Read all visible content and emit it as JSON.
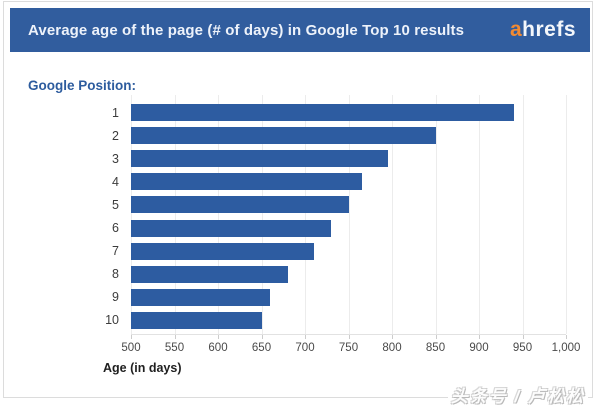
{
  "header": {
    "title": "Average age of the page (# of days) in Google Top 10 results",
    "logo_a": "a",
    "logo_rest": "hrefs"
  },
  "chart_data": {
    "type": "bar",
    "orientation": "horizontal",
    "title": "Average age of the page (# of days) in Google Top 10 results",
    "categories_title": "Google Position:",
    "categories": [
      "1",
      "2",
      "3",
      "4",
      "5",
      "6",
      "7",
      "8",
      "9",
      "10"
    ],
    "values": [
      940,
      850,
      795,
      765,
      750,
      730,
      710,
      680,
      660,
      650
    ],
    "xlabel": "Age (in days)",
    "ylabel": "Google Position",
    "xlim": [
      500,
      1000
    ],
    "xticks": [
      500,
      550,
      600,
      650,
      700,
      750,
      800,
      850,
      900,
      950,
      1000
    ],
    "xtick_labels": [
      "500",
      "550",
      "600",
      "650",
      "700",
      "750",
      "800",
      "850",
      "900",
      "950",
      "1,000"
    ],
    "grid": true,
    "legend": false,
    "bar_color": "#2d5ca1"
  },
  "watermark": {
    "text": "头条号 / 卢松松"
  },
  "colors": {
    "banner_blue": "#315d9e",
    "bar_blue": "#2d5ca1",
    "logo_orange": "#f18a33",
    "category_title_blue": "#2d5c9e",
    "gridline": "#ececec"
  }
}
